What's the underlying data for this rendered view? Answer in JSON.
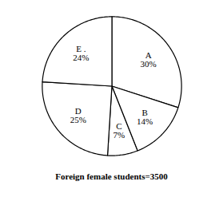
{
  "chart_data": {
    "type": "pie",
    "title": "Foreign female students=3500",
    "categories": [
      "A",
      "B",
      "C",
      "D",
      "E ."
    ],
    "values": [
      30,
      14,
      7,
      25,
      24
    ],
    "value_labels": [
      "30%",
      "14%",
      "7%",
      "25%",
      "24%"
    ],
    "colors": [
      "#ffffff",
      "#ffffff",
      "#ffffff",
      "#ffffff",
      "#ffffff"
    ],
    "data_labels": true
  }
}
